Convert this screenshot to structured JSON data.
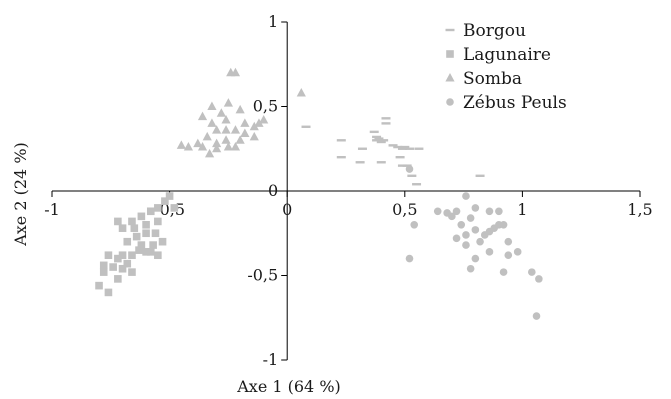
{
  "chart_data": {
    "type": "scatter",
    "xlabel": "Axe 1 (64 %)",
    "ylabel": "Axe 2 (24 %)",
    "xlim": [
      -1,
      1.5
    ],
    "ylim": [
      -1,
      1
    ],
    "xticks": [
      -1,
      -0.5,
      0,
      0.5,
      1,
      1.5
    ],
    "xtick_labels": [
      "-1",
      "-0,5",
      "0",
      "0,5",
      "1",
      "1,5"
    ],
    "yticks": [
      -1,
      -0.5,
      0,
      0.5,
      1
    ],
    "ytick_labels": [
      "-1",
      "-0,5",
      "0",
      "0,5",
      "1"
    ],
    "grid": false,
    "legend_position": "top-right",
    "point_color": "#c0c0c0",
    "series": [
      {
        "name": "Borgou",
        "marker": "dash",
        "points": [
          [
            0.08,
            0.38
          ],
          [
            0.23,
            0.3
          ],
          [
            0.23,
            0.2
          ],
          [
            0.32,
            0.25
          ],
          [
            0.37,
            0.35
          ],
          [
            0.38,
            0.32
          ],
          [
            0.39,
            0.31
          ],
          [
            0.38,
            0.3
          ],
          [
            0.4,
            0.29
          ],
          [
            0.41,
            0.3
          ],
          [
            0.42,
            0.43
          ],
          [
            0.42,
            0.4
          ],
          [
            0.45,
            0.27
          ],
          [
            0.47,
            0.26
          ],
          [
            0.48,
            0.2
          ],
          [
            0.49,
            0.25
          ],
          [
            0.5,
            0.26
          ],
          [
            0.49,
            0.15
          ],
          [
            0.52,
            0.25
          ],
          [
            0.56,
            0.25
          ],
          [
            0.51,
            0.15
          ],
          [
            0.31,
            0.17
          ],
          [
            0.4,
            0.17
          ],
          [
            0.53,
            0.09
          ],
          [
            0.55,
            0.04
          ],
          [
            0.82,
            0.09
          ]
        ]
      },
      {
        "name": "Lagunaire",
        "marker": "square",
        "points": [
          [
            -0.5,
            -0.03
          ],
          [
            -0.48,
            -0.1
          ],
          [
            -0.52,
            -0.06
          ],
          [
            -0.55,
            -0.1
          ],
          [
            -0.58,
            -0.12
          ],
          [
            -0.62,
            -0.15
          ],
          [
            -0.66,
            -0.18
          ],
          [
            -0.72,
            -0.18
          ],
          [
            -0.7,
            -0.22
          ],
          [
            -0.65,
            -0.22
          ],
          [
            -0.6,
            -0.2
          ],
          [
            -0.55,
            -0.18
          ],
          [
            -0.56,
            -0.25
          ],
          [
            -0.6,
            -0.25
          ],
          [
            -0.64,
            -0.27
          ],
          [
            -0.68,
            -0.3
          ],
          [
            -0.62,
            -0.32
          ],
          [
            -0.57,
            -0.32
          ],
          [
            -0.53,
            -0.3
          ],
          [
            -0.58,
            -0.36
          ],
          [
            -0.63,
            -0.35
          ],
          [
            -0.66,
            -0.38
          ],
          [
            -0.7,
            -0.38
          ],
          [
            -0.72,
            -0.4
          ],
          [
            -0.76,
            -0.38
          ],
          [
            -0.78,
            -0.44
          ],
          [
            -0.74,
            -0.45
          ],
          [
            -0.7,
            -0.46
          ],
          [
            -0.68,
            -0.43
          ],
          [
            -0.66,
            -0.48
          ],
          [
            -0.78,
            -0.48
          ],
          [
            -0.72,
            -0.52
          ],
          [
            -0.8,
            -0.56
          ],
          [
            -0.76,
            -0.6
          ],
          [
            -0.6,
            -0.36
          ],
          [
            -0.55,
            -0.38
          ]
        ]
      },
      {
        "name": "Somba",
        "marker": "triangle",
        "points": [
          [
            -0.22,
            0.7
          ],
          [
            -0.24,
            0.7
          ],
          [
            -0.32,
            0.5
          ],
          [
            -0.36,
            0.44
          ],
          [
            -0.32,
            0.4
          ],
          [
            -0.28,
            0.46
          ],
          [
            -0.25,
            0.52
          ],
          [
            -0.2,
            0.48
          ],
          [
            -0.26,
            0.42
          ],
          [
            -0.3,
            0.36
          ],
          [
            -0.34,
            0.32
          ],
          [
            -0.38,
            0.28
          ],
          [
            -0.42,
            0.26
          ],
          [
            -0.36,
            0.26
          ],
          [
            -0.3,
            0.28
          ],
          [
            -0.26,
            0.3
          ],
          [
            -0.22,
            0.36
          ],
          [
            -0.18,
            0.4
          ],
          [
            -0.14,
            0.38
          ],
          [
            -0.12,
            0.4
          ],
          [
            -0.1,
            0.42
          ],
          [
            -0.14,
            0.32
          ],
          [
            -0.2,
            0.3
          ],
          [
            -0.25,
            0.26
          ],
          [
            -0.3,
            0.25
          ],
          [
            -0.33,
            0.22
          ],
          [
            -0.45,
            0.27
          ],
          [
            -0.22,
            0.26
          ],
          [
            -0.18,
            0.34
          ],
          [
            -0.26,
            0.36
          ],
          [
            0.06,
            0.58
          ]
        ]
      },
      {
        "name": "Zébus Peuls",
        "marker": "circle",
        "points": [
          [
            0.52,
            0.13
          ],
          [
            0.76,
            -0.03
          ],
          [
            0.64,
            -0.12
          ],
          [
            0.68,
            -0.13
          ],
          [
            0.7,
            -0.15
          ],
          [
            0.72,
            -0.12
          ],
          [
            0.8,
            -0.1
          ],
          [
            0.78,
            -0.16
          ],
          [
            0.86,
            -0.12
          ],
          [
            0.9,
            -0.12
          ],
          [
            0.9,
            -0.2
          ],
          [
            0.88,
            -0.22
          ],
          [
            0.92,
            -0.2
          ],
          [
            0.86,
            -0.24
          ],
          [
            0.74,
            -0.2
          ],
          [
            0.8,
            -0.23
          ],
          [
            0.76,
            -0.26
          ],
          [
            0.72,
            -0.28
          ],
          [
            0.82,
            -0.3
          ],
          [
            0.84,
            -0.26
          ],
          [
            0.94,
            -0.3
          ],
          [
            0.86,
            -0.36
          ],
          [
            0.8,
            -0.4
          ],
          [
            0.94,
            -0.38
          ],
          [
            0.98,
            -0.36
          ],
          [
            0.76,
            -0.32
          ],
          [
            0.78,
            -0.46
          ],
          [
            0.92,
            -0.48
          ],
          [
            1.04,
            -0.48
          ],
          [
            1.07,
            -0.52
          ],
          [
            1.06,
            -0.74
          ],
          [
            0.52,
            -0.4
          ],
          [
            0.54,
            -0.2
          ]
        ]
      }
    ]
  }
}
